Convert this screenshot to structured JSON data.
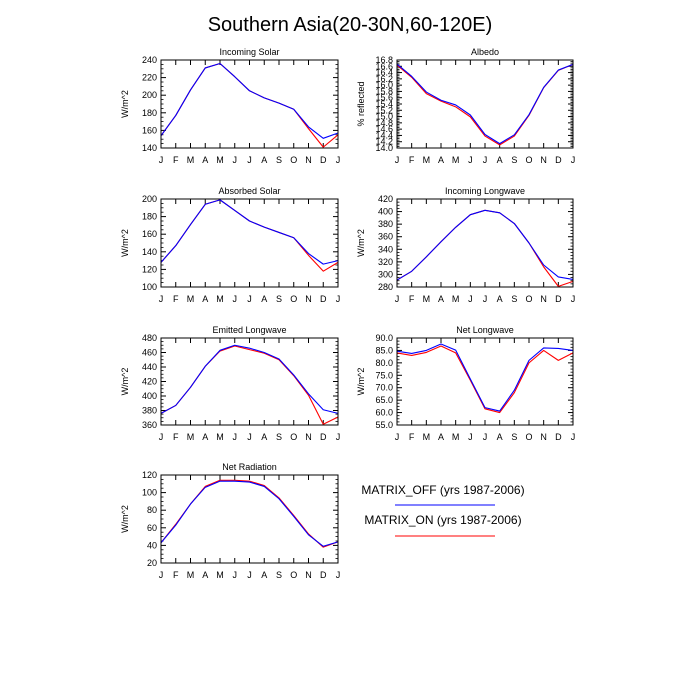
{
  "figure": {
    "title": "Southern Asia(20-30N,60-120E)",
    "legend": [
      {
        "label": "MATRIX_OFF (yrs 1987-2006)",
        "color": "#0000ff"
      },
      {
        "label": "MATRIX_ON (yrs 1987-2006)",
        "color": "#ff0000"
      }
    ]
  },
  "chart_data": [
    {
      "type": "line",
      "title": "Incoming Solar",
      "ylabel": "W/m^2",
      "x": [
        "J",
        "F",
        "M",
        "A",
        "M",
        "J",
        "J",
        "A",
        "S",
        "O",
        "N",
        "D",
        "J"
      ],
      "ylim": [
        140,
        240
      ],
      "yticks": [
        140,
        160,
        180,
        200,
        220,
        240
      ],
      "ytick_labels": [
        "140",
        "160",
        "180",
        "200",
        "220",
        "240"
      ],
      "series": [
        {
          "name": "MATRIX_OFF (yrs 1987-2006)",
          "color": "#0000ff",
          "values": [
            154,
            177,
            206,
            231,
            236,
            221,
            205,
            197,
            191,
            184,
            164,
            151,
            157
          ]
        },
        {
          "name": "MATRIX_ON (yrs 1987-2006)",
          "color": "#ff0000",
          "values": [
            154,
            177,
            206,
            231,
            236,
            221,
            205,
            197,
            191,
            184,
            162,
            141,
            155
          ]
        }
      ]
    },
    {
      "type": "line",
      "title": "Albedo",
      "ylabel": "% reflected",
      "x": [
        "J",
        "F",
        "M",
        "A",
        "M",
        "J",
        "J",
        "A",
        "S",
        "O",
        "N",
        "D",
        "J"
      ],
      "ylim": [
        14.0,
        16.8
      ],
      "yticks": [
        14.0,
        14.2,
        14.4,
        14.6,
        14.8,
        15.0,
        15.2,
        15.4,
        15.6,
        15.8,
        16.0,
        16.2,
        16.4,
        16.6,
        16.8
      ],
      "ytick_labels": [
        "14.0",
        "14.2",
        "14.4",
        "14.6",
        "14.8",
        "15.0",
        "15.2",
        "15.4",
        "15.6",
        "15.8",
        "16.0",
        "16.2",
        "16.4",
        "16.6",
        "16.8"
      ],
      "series": [
        {
          "name": "MATRIX_OFF (yrs 1987-2006)",
          "color": "#0000ff",
          "values": [
            16.67,
            16.28,
            15.78,
            15.52,
            15.37,
            15.05,
            14.43,
            14.14,
            14.42,
            15.06,
            15.93,
            16.48,
            16.66
          ]
        },
        {
          "name": "MATRIX_ON (yrs 1987-2006)",
          "color": "#ff0000",
          "values": [
            16.64,
            16.25,
            15.73,
            15.49,
            15.31,
            14.99,
            14.38,
            14.1,
            14.38,
            15.04,
            15.92,
            16.47,
            16.66
          ]
        }
      ]
    },
    {
      "type": "line",
      "title": "Absorbed Solar",
      "ylabel": "W/m^2",
      "x": [
        "J",
        "F",
        "M",
        "A",
        "M",
        "J",
        "J",
        "A",
        "S",
        "O",
        "N",
        "D",
        "J"
      ],
      "ylim": [
        100,
        200
      ],
      "yticks": [
        100,
        120,
        140,
        160,
        180,
        200
      ],
      "ytick_labels": [
        "100",
        "120",
        "140",
        "160",
        "180",
        "200"
      ],
      "series": [
        {
          "name": "MATRIX_OFF (yrs 1987-2006)",
          "color": "#0000ff",
          "values": [
            128,
            147,
            171,
            194,
            199,
            187,
            175,
            168,
            162,
            156,
            138,
            126,
            130
          ]
        },
        {
          "name": "MATRIX_ON (yrs 1987-2006)",
          "color": "#ff0000",
          "values": [
            128,
            147,
            171,
            194,
            199,
            187,
            175,
            168,
            162,
            156,
            136,
            118,
            128
          ]
        }
      ]
    },
    {
      "type": "line",
      "title": "Incoming Longwave",
      "ylabel": "W/m^2",
      "x": [
        "J",
        "F",
        "M",
        "A",
        "M",
        "J",
        "J",
        "A",
        "S",
        "O",
        "N",
        "D",
        "J"
      ],
      "ylim": [
        280,
        420
      ],
      "yticks": [
        280,
        300,
        320,
        340,
        360,
        380,
        400,
        420
      ],
      "ytick_labels": [
        "280",
        "300",
        "320",
        "340",
        "360",
        "380",
        "400",
        "420"
      ],
      "series": [
        {
          "name": "MATRIX_OFF (yrs 1987-2006)",
          "color": "#0000ff",
          "values": [
            291,
            305,
            328,
            352,
            375,
            395,
            402,
            398,
            381,
            350,
            315,
            296,
            292
          ]
        },
        {
          "name": "MATRIX_ON (yrs 1987-2006)",
          "color": "#ff0000",
          "values": [
            291,
            305,
            328,
            352,
            375,
            395,
            402,
            398,
            381,
            350,
            312,
            281,
            289
          ]
        }
      ]
    },
    {
      "type": "line",
      "title": "Emitted Longwave",
      "ylabel": "W/m^2",
      "x": [
        "J",
        "F",
        "M",
        "A",
        "M",
        "J",
        "J",
        "A",
        "S",
        "O",
        "N",
        "D",
        "J"
      ],
      "ylim": [
        360,
        480
      ],
      "yticks": [
        360,
        380,
        400,
        420,
        440,
        460,
        480
      ],
      "ytick_labels": [
        "360",
        "380",
        "400",
        "420",
        "440",
        "460",
        "480"
      ],
      "series": [
        {
          "name": "MATRIX_OFF (yrs 1987-2006)",
          "color": "#0000ff",
          "values": [
            376,
            387,
            412,
            441,
            463,
            470,
            466,
            460,
            451,
            429,
            403,
            381,
            376
          ]
        },
        {
          "name": "MATRIX_ON (yrs 1987-2006)",
          "color": "#ff0000",
          "values": [
            376,
            387,
            412,
            441,
            462,
            469,
            464,
            459,
            450,
            428,
            401,
            361,
            371
          ]
        }
      ]
    },
    {
      "type": "line",
      "title": "Net Longwave",
      "ylabel": "W/m^2",
      "x": [
        "J",
        "F",
        "M",
        "A",
        "M",
        "J",
        "J",
        "A",
        "S",
        "O",
        "N",
        "D",
        "J"
      ],
      "ylim": [
        55.0,
        90.0
      ],
      "yticks": [
        55.0,
        60.0,
        65.0,
        70.0,
        75.0,
        80.0,
        85.0,
        90.0
      ],
      "ytick_labels": [
        "55.0",
        "60.0",
        "65.0",
        "70.0",
        "75.0",
        "80.0",
        "85.0",
        "90.0"
      ],
      "series": [
        {
          "name": "MATRIX_OFF (yrs 1987-2006)",
          "color": "#0000ff",
          "values": [
            84.7,
            83.8,
            85.0,
            87.6,
            85.1,
            73.5,
            62.0,
            60.6,
            69.0,
            81.0,
            86.0,
            85.8,
            85.0
          ]
        },
        {
          "name": "MATRIX_ON (yrs 1987-2006)",
          "color": "#ff0000",
          "values": [
            84.0,
            83.0,
            84.2,
            86.8,
            84.0,
            73.0,
            61.5,
            60.0,
            68.0,
            80.0,
            85.0,
            81.0,
            84.0
          ]
        }
      ]
    },
    {
      "type": "line",
      "title": "Net Radiation",
      "ylabel": "W/m^2",
      "x": [
        "J",
        "F",
        "M",
        "A",
        "M",
        "J",
        "J",
        "A",
        "S",
        "O",
        "N",
        "D",
        "J"
      ],
      "ylim": [
        20,
        120
      ],
      "yticks": [
        20,
        40,
        60,
        80,
        100,
        120
      ],
      "ytick_labels": [
        "20",
        "40",
        "60",
        "80",
        "100",
        "120"
      ],
      "series": [
        {
          "name": "MATRIX_OFF (yrs 1987-2006)",
          "color": "#0000ff",
          "values": [
            43,
            63,
            87,
            106,
            113,
            113,
            112,
            107,
            93,
            73,
            52,
            39,
            44
          ]
        },
        {
          "name": "MATRIX_ON (yrs 1987-2006)",
          "color": "#ff0000",
          "values": [
            43,
            64,
            87,
            107,
            114,
            114,
            113,
            108,
            94,
            74,
            53,
            38,
            44
          ]
        }
      ]
    }
  ]
}
